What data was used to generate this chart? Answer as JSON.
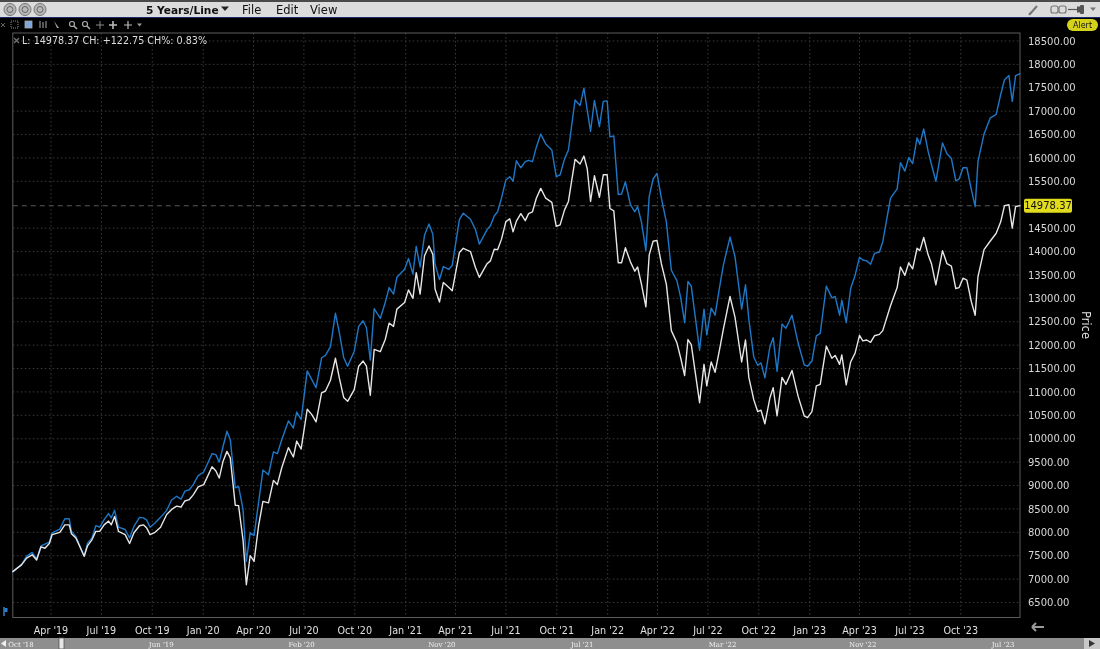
{
  "chart_data": {
    "type": "line",
    "ylabel": "Price",
    "annotations": [
      "L: 14978.37 CH: +122.75 CH%: 0.83%",
      "5 Years/Line",
      "File",
      "Edit",
      "View",
      "Alert",
      "Oct '18",
      "Jun '19",
      "Feb '20",
      "Nov '20",
      "Jul '21",
      "Mar '22",
      "Nov '22",
      "Jul '23"
    ],
    "x": [
      "2019-01-22",
      "2019-02-07",
      "2019-02-16",
      "2019-02-26",
      "2019-03-06",
      "2019-03-14",
      "2019-03-21",
      "2019-03-29",
      "2019-04-03",
      "2019-04-17",
      "2019-04-26",
      "2019-05-04",
      "2019-05-08",
      "2019-05-16",
      "2019-05-31",
      "2019-06-06",
      "2019-06-14",
      "2019-06-21",
      "2019-06-28",
      "2019-07-06",
      "2019-07-14",
      "2019-07-19",
      "2019-07-25",
      "2019-08-01",
      "2019-08-13",
      "2019-08-21",
      "2019-08-29",
      "2019-09-08",
      "2019-09-15",
      "2019-09-21",
      "2019-09-27",
      "2019-10-06",
      "2019-10-16",
      "2019-10-27",
      "2019-11-05",
      "2019-11-14",
      "2019-11-22",
      "2019-11-29",
      "2019-12-07",
      "2019-12-14",
      "2019-12-23",
      "2020-01-02",
      "2020-01-17",
      "2020-01-24",
      "2020-01-30",
      "2020-02-06",
      "2020-02-13",
      "2020-02-19",
      "2020-02-28",
      "2020-03-05",
      "2020-03-13",
      "2020-03-19",
      "2020-03-26",
      "2020-04-02",
      "2020-04-10",
      "2020-04-18",
      "2020-04-28",
      "2020-05-07",
      "2020-05-14",
      "2020-05-22",
      "2020-06-03",
      "2020-06-12",
      "2020-06-18",
      "2020-06-26",
      "2020-07-07",
      "2020-07-15",
      "2020-07-23",
      "2020-08-02",
      "2020-08-09",
      "2020-08-18",
      "2020-08-27",
      "2020-09-03",
      "2020-09-11",
      "2020-09-18",
      "2020-09-30",
      "2020-10-08",
      "2020-10-16",
      "2020-10-22",
      "2020-10-29",
      "2020-11-05",
      "2020-11-16",
      "2020-11-25",
      "2020-12-02",
      "2020-12-10",
      "2020-12-16",
      "2020-12-30",
      "2021-01-06",
      "2021-01-14",
      "2021-01-20",
      "2021-01-27",
      "2021-02-04",
      "2021-02-12",
      "2021-02-19",
      "2021-02-23",
      "2021-03-03",
      "2021-03-10",
      "2021-03-20",
      "2021-03-26",
      "2021-04-08",
      "2021-04-15",
      "2021-04-28",
      "2021-05-07",
      "2021-05-14",
      "2021-05-28",
      "2021-06-03",
      "2021-06-10",
      "2021-06-16",
      "2021-06-23",
      "2021-07-01",
      "2021-07-08",
      "2021-07-14",
      "2021-07-20",
      "2021-07-28",
      "2021-08-05",
      "2021-08-11",
      "2021-08-18",
      "2021-08-25",
      "2021-09-02",
      "2021-09-11",
      "2021-09-22",
      "2021-09-30",
      "2021-10-07",
      "2021-10-15",
      "2021-10-22",
      "2021-11-03",
      "2021-11-12",
      "2021-11-19",
      "2021-11-25",
      "2021-12-01",
      "2021-12-08",
      "2021-12-17",
      "2021-12-24",
      "2021-12-31",
      "2022-01-05",
      "2022-01-12",
      "2022-01-20",
      "2022-01-26",
      "2022-02-02",
      "2022-02-11",
      "2022-02-19",
      "2022-02-24",
      "2022-03-03",
      "2022-03-11",
      "2022-03-17",
      "2022-03-24",
      "2022-03-31",
      "2022-04-08",
      "2022-04-17",
      "2022-04-26",
      "2022-05-06",
      "2022-05-13",
      "2022-05-20",
      "2022-05-26",
      "2022-06-01",
      "2022-06-16",
      "2022-06-24",
      "2022-06-29",
      "2022-07-07",
      "2022-07-14",
      "2022-07-22",
      "2022-07-29",
      "2022-08-10",
      "2022-08-19",
      "2022-08-31",
      "2022-09-07",
      "2022-09-13",
      "2022-09-22",
      "2022-09-29",
      "2022-10-05",
      "2022-10-12",
      "2022-10-21",
      "2022-10-27",
      "2022-11-03",
      "2022-11-12",
      "2022-11-19",
      "2022-11-30",
      "2022-12-11",
      "2022-12-22",
      "2022-12-28",
      "2023-01-05",
      "2023-01-13",
      "2023-01-20",
      "2023-01-31",
      "2023-02-10",
      "2023-02-16",
      "2023-02-24",
      "2023-02-28",
      "2023-03-08",
      "2023-03-16",
      "2023-03-24",
      "2023-04-01",
      "2023-04-07",
      "2023-04-14",
      "2023-04-21",
      "2023-04-28",
      "2023-05-07",
      "2023-05-13",
      "2023-05-27",
      "2023-06-08",
      "2023-06-14",
      "2023-06-22",
      "2023-06-29",
      "2023-07-06",
      "2023-07-14",
      "2023-07-19",
      "2023-07-26",
      "2023-08-03",
      "2023-08-09",
      "2023-08-17",
      "2023-08-29",
      "2023-09-06",
      "2023-09-14",
      "2023-09-22",
      "2023-09-28",
      "2023-10-05",
      "2023-10-12",
      "2023-10-20",
      "2023-10-27",
      "2023-11-01",
      "2023-11-12",
      "2023-11-23",
      "2023-12-04",
      "2023-12-12",
      "2023-12-19",
      "2023-12-27",
      "2024-01-02",
      "2024-01-08",
      "2024-01-16"
    ],
    "series": [
      {
        "color": "#1e78c8",
        "values": [
          7160,
          7310,
          7490,
          7570,
          7430,
          7710,
          7750,
          7790,
          7990,
          8070,
          8290,
          8290,
          8020,
          7910,
          7490,
          7770,
          7880,
          8140,
          8110,
          8270,
          8400,
          8310,
          8470,
          8110,
          8060,
          7880,
          8130,
          8320,
          8310,
          8260,
          8110,
          8200,
          8320,
          8470,
          8690,
          8770,
          8710,
          8880,
          8910,
          9020,
          9210,
          9290,
          9680,
          9660,
          9500,
          9840,
          10160,
          9980,
          8950,
          8980,
          8490,
          7380,
          7990,
          7930,
          8630,
          9330,
          9230,
          9720,
          9680,
          9980,
          10380,
          10230,
          10570,
          10410,
          11450,
          11270,
          11090,
          11730,
          11780,
          11970,
          12680,
          12270,
          11730,
          11550,
          11870,
          12400,
          12520,
          12370,
          11680,
          12780,
          12570,
          12910,
          13230,
          13090,
          13450,
          13620,
          13850,
          13520,
          14110,
          13670,
          14350,
          14590,
          14370,
          13730,
          13400,
          13680,
          13620,
          13700,
          14680,
          14820,
          14690,
          14470,
          14160,
          14470,
          14550,
          14760,
          14850,
          15140,
          15530,
          15600,
          15500,
          15940,
          15790,
          15920,
          15950,
          15920,
          16230,
          16510,
          16300,
          16170,
          15600,
          15640,
          15980,
          16170,
          17240,
          17120,
          17490,
          17020,
          16570,
          17230,
          16670,
          17210,
          17220,
          16450,
          16470,
          15220,
          15230,
          15490,
          15000,
          14850,
          14960,
          14630,
          14020,
          15180,
          15550,
          15670,
          15140,
          14630,
          13600,
          13380,
          13010,
          12480,
          13360,
          13260,
          11890,
          12770,
          12220,
          12790,
          12640,
          13230,
          13710,
          14310,
          13890,
          12770,
          13290,
          12550,
          11740,
          11570,
          11620,
          11300,
          11960,
          12160,
          11440,
          12450,
          12360,
          12640,
          12050,
          11580,
          11550,
          11660,
          12200,
          12250,
          13260,
          13010,
          13040,
          12640,
          12960,
          12480,
          13210,
          13490,
          13880,
          13820,
          13800,
          13730,
          13960,
          13990,
          14210,
          15140,
          15340,
          15900,
          15720,
          16010,
          15880,
          16430,
          16290,
          16620,
          16140,
          15860,
          15500,
          16320,
          16090,
          15990,
          15510,
          15550,
          15790,
          15790,
          15330,
          14960,
          15920,
          16510,
          16850,
          16930,
          17350,
          17670,
          17760,
          17210,
          17760,
          17800
        ]
      },
      {
        "color": "#e6e6e6",
        "values": [
          7160,
          7310,
          7450,
          7520,
          7410,
          7690,
          7660,
          7760,
          7950,
          8000,
          8160,
          8160,
          7970,
          7880,
          7490,
          7710,
          7840,
          8020,
          8020,
          8160,
          8240,
          8160,
          8340,
          8020,
          7950,
          7760,
          7990,
          8140,
          8160,
          8090,
          7950,
          8000,
          8110,
          8380,
          8490,
          8560,
          8540,
          8670,
          8700,
          8800,
          8970,
          9020,
          9400,
          9310,
          9160,
          9520,
          9730,
          9590,
          8580,
          8570,
          7840,
          6880,
          7500,
          7380,
          8130,
          8660,
          8630,
          9110,
          9020,
          9380,
          9810,
          9610,
          9950,
          9780,
          10630,
          10520,
          10360,
          10980,
          11020,
          11250,
          11720,
          11300,
          10880,
          10800,
          11050,
          11550,
          11660,
          11550,
          10930,
          11910,
          11860,
          12120,
          12470,
          12400,
          12770,
          12910,
          13180,
          13000,
          13550,
          13090,
          13910,
          14120,
          13940,
          13200,
          12920,
          13340,
          13230,
          13160,
          13980,
          14070,
          14000,
          13660,
          13450,
          13740,
          13800,
          14050,
          14040,
          14260,
          14640,
          14700,
          14420,
          14650,
          14810,
          14660,
          14810,
          14850,
          15140,
          15350,
          15140,
          15050,
          14540,
          14570,
          14890,
          15070,
          15970,
          15870,
          16040,
          15770,
          15070,
          15620,
          15160,
          15640,
          15640,
          14920,
          14870,
          13760,
          13760,
          14080,
          13780,
          13580,
          13670,
          13300,
          12820,
          13930,
          14220,
          14240,
          13740,
          13300,
          12310,
          12050,
          11720,
          11350,
          12120,
          12010,
          10770,
          11590,
          11130,
          11640,
          11420,
          11900,
          12340,
          13040,
          12600,
          11640,
          12110,
          11310,
          10830,
          10580,
          10610,
          10320,
          10870,
          11090,
          10490,
          11310,
          11160,
          11460,
          10910,
          10490,
          10450,
          10580,
          11130,
          11160,
          11980,
          11720,
          11780,
          11590,
          11790,
          11150,
          11640,
          11830,
          12210,
          12090,
          12110,
          12060,
          12200,
          12230,
          12310,
          12840,
          13230,
          13670,
          13490,
          13760,
          13630,
          14070,
          14020,
          14300,
          13930,
          13740,
          13290,
          14020,
          13740,
          13690,
          13210,
          13230,
          13430,
          13390,
          12930,
          12640,
          13460,
          14040,
          14220,
          14390,
          14630,
          14980,
          15000,
          14500,
          14960,
          14980
        ]
      }
    ],
    "xlim": [
      "2019-01-22",
      "2024-01-16"
    ],
    "xticks": [
      {
        "value": "2019-04-01",
        "label": "Apr '19"
      },
      {
        "value": "2019-07-01",
        "label": "Jul '19"
      },
      {
        "value": "2019-10-01",
        "label": "Oct '19"
      },
      {
        "value": "2020-01-01",
        "label": "Jan '20"
      },
      {
        "value": "2020-04-01",
        "label": "Apr '20"
      },
      {
        "value": "2020-07-01",
        "label": "Jul '20"
      },
      {
        "value": "2020-10-01",
        "label": "Oct '20"
      },
      {
        "value": "2021-01-01",
        "label": "Jan '21"
      },
      {
        "value": "2021-04-01",
        "label": "Apr '21"
      },
      {
        "value": "2021-07-01",
        "label": "Jul '21"
      },
      {
        "value": "2021-10-01",
        "label": "Oct '21"
      },
      {
        "value": "2022-01-01",
        "label": "Jan '22"
      },
      {
        "value": "2022-04-01",
        "label": "Apr '22"
      },
      {
        "value": "2022-07-01",
        "label": "Jul '22"
      },
      {
        "value": "2022-10-01",
        "label": "Oct '22"
      },
      {
        "value": "2023-01-01",
        "label": "Jan '23"
      },
      {
        "value": "2023-04-01",
        "label": "Apr '23"
      },
      {
        "value": "2023-07-01",
        "label": "Jul '23"
      },
      {
        "value": "2023-10-01",
        "label": "Oct '23"
      }
    ],
    "ylim": [
      6180,
      18670
    ],
    "yticks": [
      {
        "value": 6500,
        "label": "6500.00"
      },
      {
        "value": 7000,
        "label": "7000.00"
      },
      {
        "value": 7500,
        "label": "7500.00"
      },
      {
        "value": 8000,
        "label": "8000.00"
      },
      {
        "value": 8500,
        "label": "8500.00"
      },
      {
        "value": 9000,
        "label": "9000.00"
      },
      {
        "value": 9500,
        "label": "9500.00"
      },
      {
        "value": 10000,
        "label": "10000.00"
      },
      {
        "value": 10500,
        "label": "10500.00"
      },
      {
        "value": 11000,
        "label": "11000.00"
      },
      {
        "value": 11500,
        "label": "11500.00"
      },
      {
        "value": 12000,
        "label": "12000.00"
      },
      {
        "value": 12500,
        "label": "12500.00"
      },
      {
        "value": 13000,
        "label": "13000.00"
      },
      {
        "value": 13500,
        "label": "13500.00"
      },
      {
        "value": 14000,
        "label": "14000.00"
      },
      {
        "value": 14500,
        "label": "14500.00"
      },
      {
        "value": 15500,
        "label": "15500.00"
      },
      {
        "value": 16000,
        "label": "16000.00"
      },
      {
        "value": 16500,
        "label": "16500.00"
      },
      {
        "value": 17000,
        "label": "17000.00"
      },
      {
        "value": 17500,
        "label": "17500.00"
      },
      {
        "value": 18000,
        "label": "18000.00"
      },
      {
        "value": 18500,
        "label": "18500.00"
      }
    ],
    "grid": true,
    "ref_lines": [
      {
        "axis": "y",
        "value": 14978.37,
        "label": "14978.37",
        "color": "#5a5a5a",
        "line_style": "dashed"
      }
    ]
  }
}
